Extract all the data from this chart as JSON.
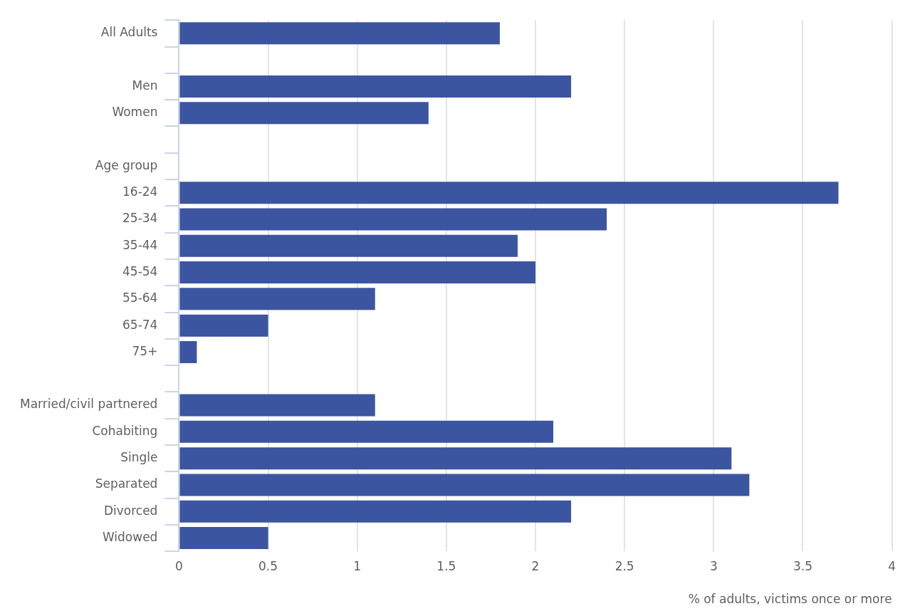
{
  "chart_data": {
    "type": "bar",
    "orientation": "horizontal",
    "categories": [
      "All Adults",
      null,
      "Men",
      "Women",
      null,
      "Age group",
      "16-24",
      "25-34",
      "35-44",
      "45-54",
      "55-64",
      "65-74",
      "75+",
      null,
      "Married/civil partnered",
      "Cohabiting",
      "Single",
      "Separated",
      "Divorced",
      "Widowed"
    ],
    "values": [
      1.8,
      null,
      2.2,
      1.4,
      null,
      null,
      3.7,
      2.4,
      1.9,
      2.0,
      1.1,
      0.5,
      0.1,
      null,
      1.1,
      2.1,
      3.1,
      3.2,
      2.2,
      0.5
    ],
    "color": "#3c55a0",
    "xlim": [
      0,
      4
    ],
    "xticks": [
      0,
      0.5,
      1,
      1.5,
      2,
      2.5,
      3,
      3.5,
      4
    ],
    "xlabel": "% of adults, victims once or more",
    "grid": "x"
  }
}
